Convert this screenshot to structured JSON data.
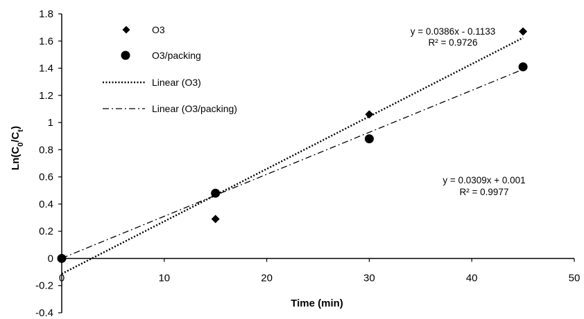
{
  "chart_data": {
    "type": "scatter",
    "xlabel": "Time  (min)",
    "ylabel_parts": [
      "Ln(C",
      "0",
      "/C",
      "t",
      ")"
    ],
    "xlim": [
      0,
      50
    ],
    "ylim": [
      -0.4,
      1.8
    ],
    "x_ticks": [
      0,
      10,
      20,
      30,
      40,
      50
    ],
    "y_ticks": [
      -0.4,
      -0.2,
      0,
      0.2,
      0.4,
      0.6,
      0.8,
      1,
      1.2,
      1.4,
      1.6,
      1.8
    ],
    "x_tick_labels": [
      "0",
      "10",
      "20",
      "30",
      "40",
      "50"
    ],
    "y_tick_labels": [
      "-0.4",
      "-0.2",
      "0",
      "0.2",
      "0.4",
      "0.6",
      "0.8",
      "1",
      "1.2",
      "1.4",
      "1.6",
      "1.8"
    ],
    "grid": false,
    "legend_position": "top-left",
    "series": [
      {
        "name": "O3",
        "marker": "diamond",
        "x": [
          0,
          15,
          30,
          45
        ],
        "y": [
          0,
          0.29,
          1.06,
          1.67
        ]
      },
      {
        "name": "O3/packing",
        "marker": "circle",
        "x": [
          0,
          15,
          30,
          45
        ],
        "y": [
          0,
          0.48,
          0.88,
          1.41
        ]
      }
    ],
    "trendlines": [
      {
        "name": "Linear (O3)",
        "style": "dotted",
        "slope": 0.0386,
        "intercept": -0.1133,
        "x_range": [
          0,
          45
        ],
        "equation": "y = 0.0386x - 0.1133",
        "r2": "R² = 0.9726"
      },
      {
        "name": "Linear (O3/packing)",
        "style": "dash-dot",
        "slope": 0.0309,
        "intercept": 0.001,
        "x_range": [
          0,
          45
        ],
        "equation": "y = 0.0309x + 0.001",
        "r2": "R² = 0.9977"
      }
    ]
  }
}
